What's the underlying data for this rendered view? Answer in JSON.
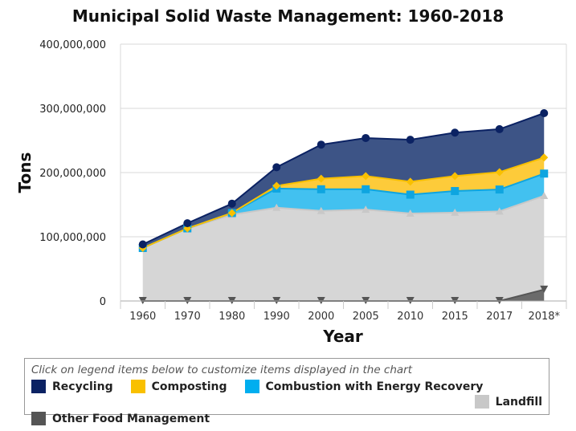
{
  "chart_data": {
    "type": "area",
    "stacked": true,
    "title": "Municipal Solid Waste Management: 1960-2018",
    "xlabel": "Year",
    "ylabel": "Tons",
    "categories": [
      "1960",
      "1970",
      "1980",
      "1990",
      "2000",
      "2005",
      "2010",
      "2015",
      "2017",
      "2018*"
    ],
    "ylim": [
      0,
      400000000
    ],
    "yticks": [
      "0",
      "100,000,000",
      "200,000,000",
      "300,000,000",
      "400,000,000"
    ],
    "grid": true,
    "legend_position": "bottom",
    "legend_note": "Click on legend items below to customize items displayed in the chart",
    "series": [
      {
        "name": "Recycling",
        "color": "#0b2263",
        "fill": "#3d5486",
        "marker": "circle",
        "values": [
          5600000,
          8000000,
          14500000,
          29000000,
          53000000,
          59200000,
          65300000,
          67600000,
          67000000,
          69100000
        ]
      },
      {
        "name": "Composting",
        "color": "#f9c000",
        "fill": "#fdcb3a",
        "marker": "diamond",
        "values": [
          0,
          0,
          0,
          4200000,
          16500000,
          20600000,
          20200000,
          23400000,
          27000000,
          25000000
        ]
      },
      {
        "name": "Combustion with Energy Recovery",
        "color": "#0ea5e0",
        "fill": "#42c1f0",
        "marker": "square",
        "values": [
          0,
          400000,
          2700000,
          29800000,
          33700000,
          31700000,
          29300000,
          33500000,
          34000000,
          34600000
        ]
      },
      {
        "name": "Landfill",
        "color": "#c8c8c8",
        "fill": "#d6d6d6",
        "marker": "triangle-up",
        "values": [
          82500000,
          112700000,
          134400000,
          145300000,
          140300000,
          142300000,
          136300000,
          137700000,
          139600000,
          146100000
        ]
      },
      {
        "name": "Other Food Management",
        "color": "#555555",
        "fill": "#6b6b6b",
        "marker": "triangle-down",
        "values": [
          0,
          0,
          0,
          0,
          0,
          0,
          0,
          0,
          0,
          17700000
        ]
      }
    ]
  }
}
